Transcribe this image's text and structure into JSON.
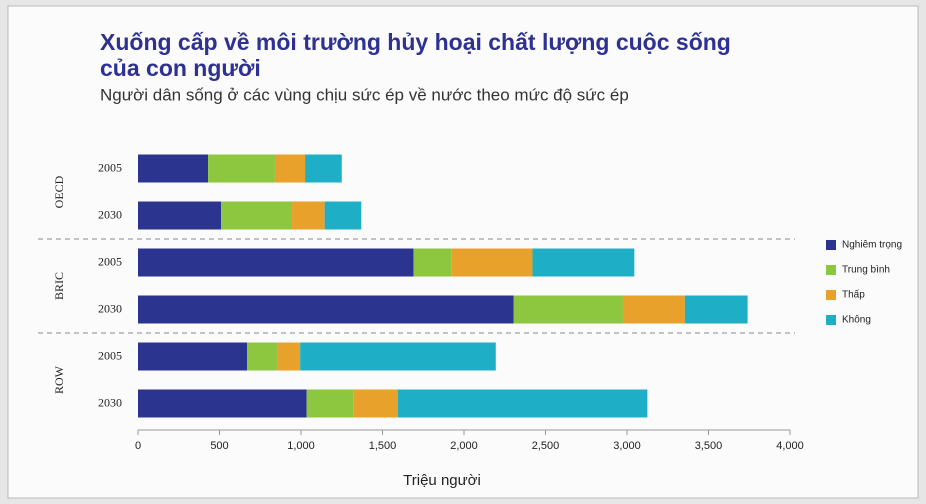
{
  "chart_data": {
    "type": "stacked_barh",
    "title": "Xuống cấp về môi trường hủy hoại chất lượng cuộc sống",
    "title_line2": "của con người",
    "subtitle": "Người dân sống ở các vùng chịu sức ép về nước theo mức độ sức ép",
    "x_label": "Triệu người",
    "groups": [
      "OECD",
      "BRIC",
      "ROW"
    ],
    "categories": [
      "2005",
      "2030",
      "2005",
      "2030",
      "2005",
      "2030"
    ],
    "series": [
      {
        "name": "Nghiêm trọng",
        "color": "#2b3590",
        "values": [
          430,
          510,
          1690,
          2305,
          670,
          1035
        ]
      },
      {
        "name": "Trung bình",
        "color": "#8dc63f",
        "values": [
          410,
          435,
          235,
          670,
          185,
          285
        ]
      },
      {
        "name": "Thấp",
        "color": "#e8a22b",
        "values": [
          185,
          200,
          495,
          380,
          140,
          275
        ]
      },
      {
        "name": "Không",
        "color": "#1eafc7",
        "values": [
          225,
          225,
          625,
          385,
          1200,
          1530
        ]
      }
    ],
    "xlim": [
      0,
      4000
    ],
    "xticks": [
      0,
      500,
      {
        "value": 1000,
        "label": "1,000"
      },
      {
        "value": 1500,
        "label": "1,500"
      },
      {
        "value": 2000,
        "label": "2,000"
      },
      {
        "value": 2500,
        "label": "2,500"
      },
      {
        "value": 3000,
        "label": "3,000"
      },
      {
        "value": 3500,
        "label": "3,500"
      },
      {
        "value": 4000,
        "label": "4,000"
      }
    ],
    "legend": "right"
  }
}
